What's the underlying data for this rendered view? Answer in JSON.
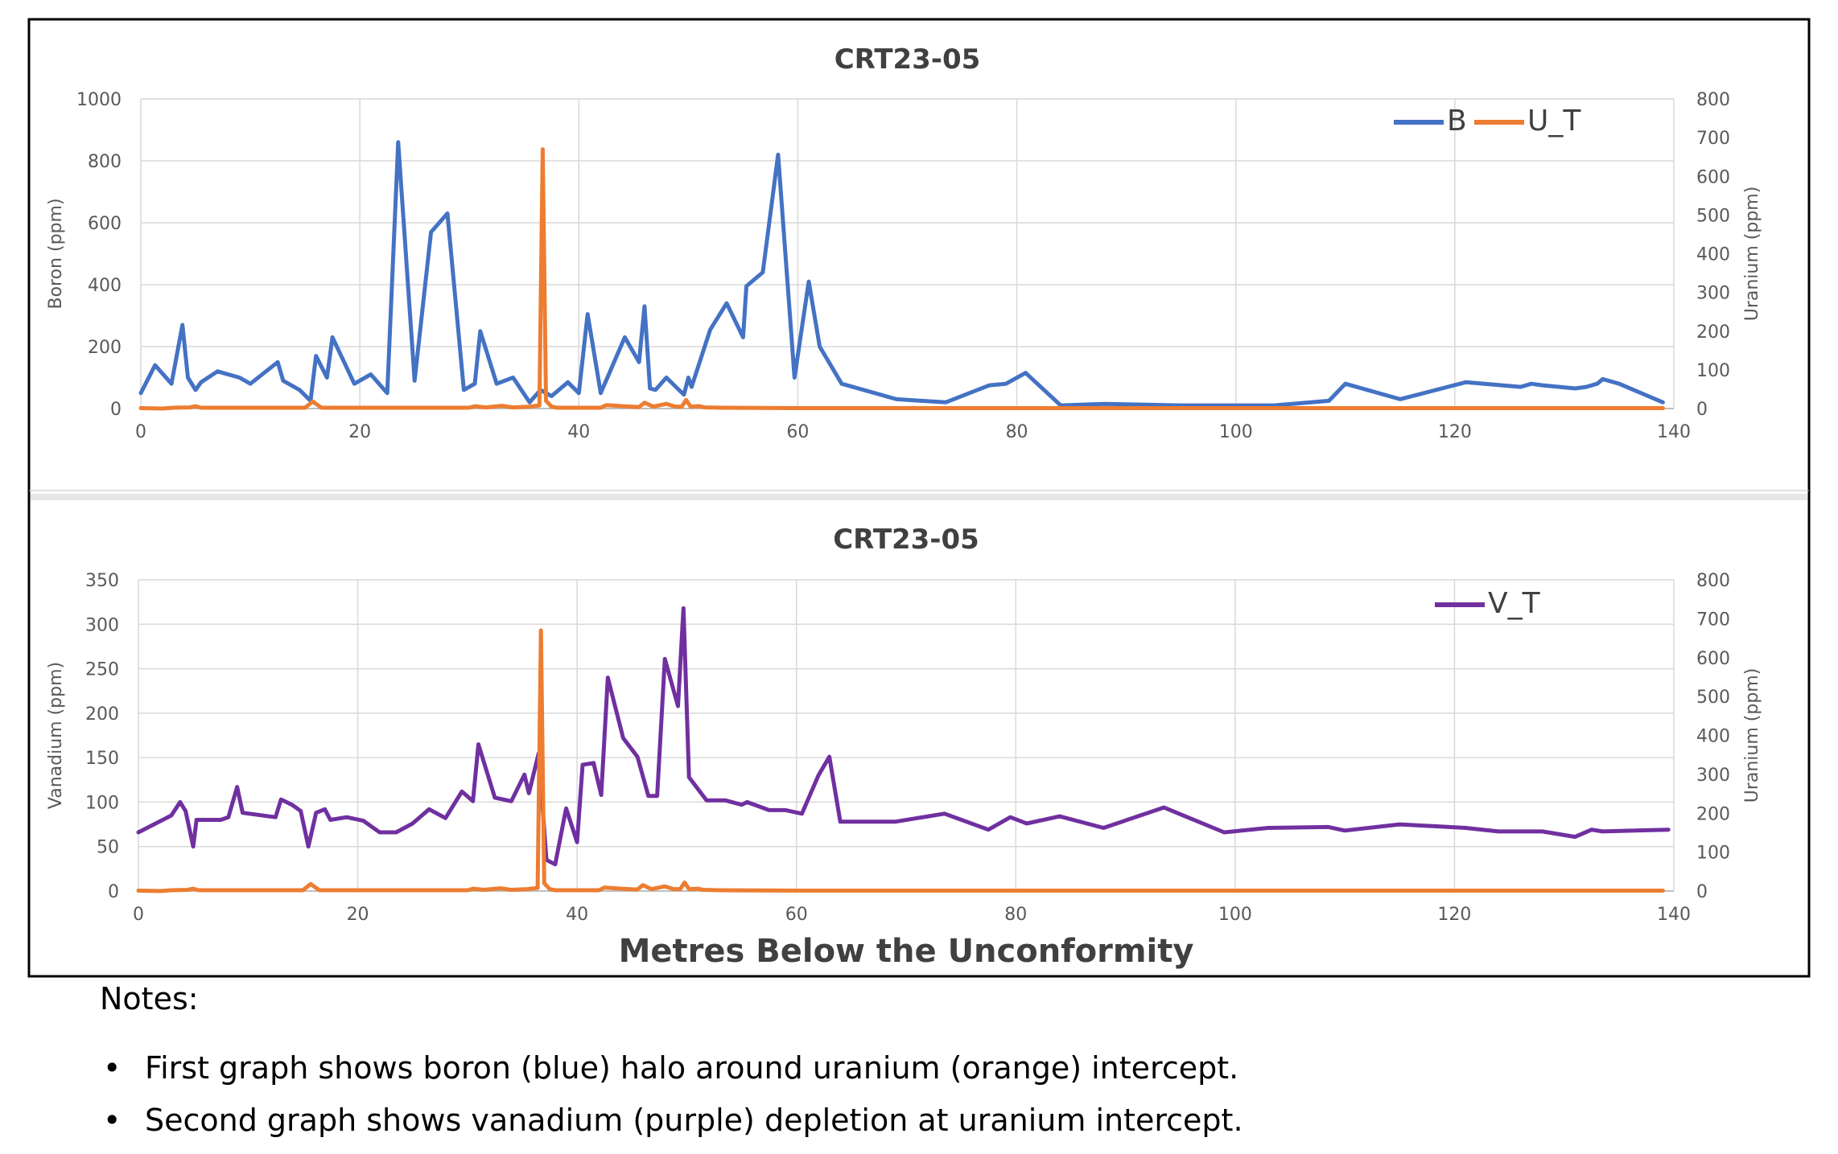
{
  "colors": {
    "boron": "#4472C4",
    "uranium": "#ED7D31",
    "vanadium": "#7030A0",
    "grid": "#D9D9D9",
    "axis_text": "#595959",
    "divider": "#E7E6E6"
  },
  "x_axis_title": "Metres Below the Unconformity",
  "notes": {
    "title": "Notes:",
    "items": [
      "First graph shows boron (blue) halo around uranium (orange) intercept.",
      "Second graph shows vanadium (purple) depletion at uranium intercept."
    ]
  },
  "chart_data": [
    {
      "type": "line",
      "title": "CRT23-05",
      "xlabel": "",
      "ylabel": "Boron (ppm)",
      "y2label": "Uranium (ppm)",
      "xlim": [
        0,
        140
      ],
      "xticks": [
        0,
        20,
        40,
        60,
        80,
        100,
        120,
        140
      ],
      "ylim": [
        0,
        1000
      ],
      "yticks": [
        0,
        200,
        400,
        600,
        800,
        1000
      ],
      "y2lim": [
        0,
        800
      ],
      "y2ticks": [
        0,
        100,
        200,
        300,
        400,
        500,
        600,
        700,
        800
      ],
      "grid": true,
      "legend": "top-right",
      "series": [
        {
          "name": "B",
          "axis": "left",
          "color": "#4472C4",
          "points": [
            [
              0,
              50
            ],
            [
              1.3,
              140
            ],
            [
              2.8,
              80
            ],
            [
              3.8,
              270
            ],
            [
              4.3,
              100
            ],
            [
              5,
              60
            ],
            [
              5.5,
              85
            ],
            [
              7,
              120
            ],
            [
              9,
              100
            ],
            [
              10,
              80
            ],
            [
              12.5,
              150
            ],
            [
              13,
              90
            ],
            [
              14.5,
              60
            ],
            [
              15.5,
              25
            ],
            [
              16,
              170
            ],
            [
              17,
              100
            ],
            [
              17.5,
              230
            ],
            [
              19.5,
              80
            ],
            [
              21,
              110
            ],
            [
              22.5,
              50
            ],
            [
              23.5,
              860
            ],
            [
              25,
              90
            ],
            [
              26.5,
              570
            ],
            [
              28,
              630
            ],
            [
              29.5,
              60
            ],
            [
              30.5,
              80
            ],
            [
              31,
              250
            ],
            [
              32.5,
              80
            ],
            [
              34,
              100
            ],
            [
              35.5,
              20
            ],
            [
              36.5,
              60
            ],
            [
              37.5,
              40
            ],
            [
              39,
              85
            ],
            [
              40,
              50
            ],
            [
              40.8,
              305
            ],
            [
              42,
              50
            ],
            [
              44.2,
              230
            ],
            [
              45.5,
              150
            ],
            [
              46,
              330
            ],
            [
              46.5,
              65
            ],
            [
              47,
              60
            ],
            [
              48,
              100
            ],
            [
              49,
              65
            ],
            [
              49.6,
              45
            ],
            [
              50,
              100
            ],
            [
              50.3,
              70
            ],
            [
              52,
              255
            ],
            [
              53.5,
              340
            ],
            [
              55,
              230
            ],
            [
              55.3,
              395
            ],
            [
              56.8,
              440
            ],
            [
              58.2,
              820
            ],
            [
              59.7,
              100
            ],
            [
              61,
              410
            ],
            [
              62,
              200
            ],
            [
              64,
              80
            ],
            [
              69,
              30
            ],
            [
              73.5,
              20
            ],
            [
              77.5,
              75
            ],
            [
              79,
              80
            ],
            [
              80.8,
              115
            ],
            [
              84,
              10
            ],
            [
              88,
              15
            ],
            [
              95,
              10
            ],
            [
              100,
              10
            ],
            [
              103.5,
              10
            ],
            [
              108.5,
              25
            ],
            [
              110,
              80
            ],
            [
              115,
              30
            ],
            [
              121,
              85
            ],
            [
              126,
              70
            ],
            [
              127,
              80
            ],
            [
              128,
              75
            ],
            [
              131,
              65
            ],
            [
              132,
              70
            ],
            [
              133,
              80
            ],
            [
              133.5,
              95
            ],
            [
              135,
              80
            ],
            [
              139,
              20
            ]
          ]
        },
        {
          "name": "U_T",
          "axis": "right",
          "color": "#ED7D31",
          "points": [
            [
              0,
              1
            ],
            [
              2,
              0
            ],
            [
              3,
              2
            ],
            [
              4.5,
              3
            ],
            [
              5,
              6
            ],
            [
              5.5,
              2
            ],
            [
              10,
              2
            ],
            [
              15,
              2
            ],
            [
              15.7,
              18
            ],
            [
              16.5,
              2
            ],
            [
              20,
              2
            ],
            [
              25,
              2
            ],
            [
              30,
              2
            ],
            [
              30.5,
              6
            ],
            [
              31.5,
              3
            ],
            [
              33,
              7
            ],
            [
              34,
              3
            ],
            [
              35.5,
              5
            ],
            [
              36.4,
              8
            ],
            [
              36.7,
              670
            ],
            [
              37,
              20
            ],
            [
              37.5,
              5
            ],
            [
              38,
              2
            ],
            [
              42,
              2
            ],
            [
              42.5,
              9
            ],
            [
              44,
              6
            ],
            [
              45.5,
              4
            ],
            [
              46,
              15
            ],
            [
              46.8,
              5
            ],
            [
              48,
              12
            ],
            [
              48.8,
              5
            ],
            [
              49.4,
              5
            ],
            [
              49.8,
              22
            ],
            [
              50.2,
              5
            ],
            [
              51,
              6
            ],
            [
              51.5,
              3
            ],
            [
              53,
              2
            ],
            [
              60,
              1
            ],
            [
              80,
              1
            ],
            [
              100,
              1
            ],
            [
              120,
              1
            ],
            [
              139,
              1
            ]
          ]
        }
      ]
    },
    {
      "type": "line",
      "title": "CRT23-05",
      "xlabel": "Metres Below the Unconformity",
      "ylabel": "Vanadium (ppm)",
      "y2label": "Uranium (ppm)",
      "xlim": [
        0,
        140
      ],
      "xticks": [
        0,
        20,
        40,
        60,
        80,
        100,
        120,
        140
      ],
      "ylim": [
        0,
        350
      ],
      "yticks": [
        0,
        50,
        100,
        150,
        200,
        250,
        300,
        350
      ],
      "y2lim": [
        0,
        800
      ],
      "y2ticks": [
        0,
        100,
        200,
        300,
        400,
        500,
        600,
        700,
        800
      ],
      "grid": true,
      "legend": "top-right",
      "series": [
        {
          "name": "V_T",
          "axis": "left",
          "color": "#7030A0",
          "points": [
            [
              0,
              66
            ],
            [
              3,
              85
            ],
            [
              3.8,
              100
            ],
            [
              4.3,
              90
            ],
            [
              5,
              50
            ],
            [
              5.3,
              80
            ],
            [
              7.5,
              80
            ],
            [
              8.2,
              83
            ],
            [
              9,
              117
            ],
            [
              9.5,
              88
            ],
            [
              12.5,
              83
            ],
            [
              13,
              103
            ],
            [
              14,
              97
            ],
            [
              14.8,
              90
            ],
            [
              15.5,
              50
            ],
            [
              16.2,
              88
            ],
            [
              17,
              92
            ],
            [
              17.5,
              80
            ],
            [
              19,
              83
            ],
            [
              20.5,
              79
            ],
            [
              22,
              66
            ],
            [
              23.5,
              66
            ],
            [
              25,
              76
            ],
            [
              26.5,
              92
            ],
            [
              28,
              82
            ],
            [
              29.5,
              112
            ],
            [
              30.5,
              101
            ],
            [
              31,
              165
            ],
            [
              32.5,
              105
            ],
            [
              34,
              101
            ],
            [
              35.2,
              131
            ],
            [
              35.6,
              110
            ],
            [
              36.5,
              155
            ],
            [
              37.2,
              35
            ],
            [
              38,
              30
            ],
            [
              39,
              93
            ],
            [
              40,
              55
            ],
            [
              40.5,
              142
            ],
            [
              41.5,
              144
            ],
            [
              42.2,
              108
            ],
            [
              42.8,
              240
            ],
            [
              44.2,
              172
            ],
            [
              45.5,
              151
            ],
            [
              46.5,
              107
            ],
            [
              47.3,
              107
            ],
            [
              48,
              261
            ],
            [
              49.2,
              208
            ],
            [
              49.7,
              318
            ],
            [
              50.2,
              128
            ],
            [
              51.8,
              102
            ],
            [
              53.5,
              102
            ],
            [
              55,
              97
            ],
            [
              55.5,
              100
            ],
            [
              57.5,
              91
            ],
            [
              59,
              91
            ],
            [
              60.5,
              87
            ],
            [
              62,
              130
            ],
            [
              63,
              151
            ],
            [
              64,
              78
            ],
            [
              69,
              78
            ],
            [
              73.5,
              87
            ],
            [
              77.5,
              69
            ],
            [
              79.5,
              83
            ],
            [
              81,
              76
            ],
            [
              84,
              84
            ],
            [
              88,
              71
            ],
            [
              93.5,
              94
            ],
            [
              99,
              66
            ],
            [
              103,
              71
            ],
            [
              108.5,
              72
            ],
            [
              110,
              68
            ],
            [
              115,
              75
            ],
            [
              121,
              71
            ],
            [
              124,
              67
            ],
            [
              128,
              67
            ],
            [
              131,
              61
            ],
            [
              132.5,
              69
            ],
            [
              133.5,
              67
            ],
            [
              139.5,
              69
            ]
          ]
        },
        {
          "name": "U_T",
          "axis": "right",
          "color": "#ED7D31",
          "legend": false,
          "points": [
            [
              0,
              1
            ],
            [
              2,
              0
            ],
            [
              3,
              2
            ],
            [
              4.5,
              3
            ],
            [
              5,
              6
            ],
            [
              5.5,
              2
            ],
            [
              10,
              2
            ],
            [
              15,
              2
            ],
            [
              15.7,
              18
            ],
            [
              16.5,
              2
            ],
            [
              20,
              2
            ],
            [
              25,
              2
            ],
            [
              30,
              2
            ],
            [
              30.5,
              6
            ],
            [
              31.5,
              3
            ],
            [
              33,
              7
            ],
            [
              34,
              3
            ],
            [
              35.5,
              5
            ],
            [
              36.4,
              8
            ],
            [
              36.7,
              670
            ],
            [
              37,
              20
            ],
            [
              37.5,
              5
            ],
            [
              38,
              2
            ],
            [
              42,
              2
            ],
            [
              42.5,
              9
            ],
            [
              44,
              6
            ],
            [
              45.5,
              4
            ],
            [
              46,
              15
            ],
            [
              46.8,
              5
            ],
            [
              48,
              12
            ],
            [
              48.8,
              5
            ],
            [
              49.4,
              5
            ],
            [
              49.8,
              22
            ],
            [
              50.2,
              5
            ],
            [
              51,
              6
            ],
            [
              51.5,
              3
            ],
            [
              53,
              2
            ],
            [
              60,
              1
            ],
            [
              80,
              1
            ],
            [
              100,
              1
            ],
            [
              120,
              1
            ],
            [
              139,
              1
            ]
          ]
        }
      ]
    }
  ]
}
